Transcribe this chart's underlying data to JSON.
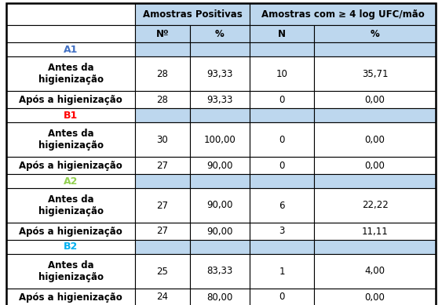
{
  "groups": [
    {
      "label": "A1",
      "label_color": "#4472C4",
      "rows": [
        {
          "label": "Antes da\nhigienização",
          "values": [
            "28",
            "93,33",
            "10",
            "35,71"
          ]
        },
        {
          "label": "Após a higienização",
          "values": [
            "28",
            "93,33",
            "0",
            "0,00"
          ]
        }
      ]
    },
    {
      "label": "B1",
      "label_color": "#FF0000",
      "rows": [
        {
          "label": "Antes da\nhigienização",
          "values": [
            "30",
            "100,00",
            "0",
            "0,00"
          ]
        },
        {
          "label": "Após a higienização",
          "values": [
            "27",
            "90,00",
            "0",
            "0,00"
          ]
        }
      ]
    },
    {
      "label": "A2",
      "label_color": "#92D050",
      "rows": [
        {
          "label": "Antes da\nhigienização",
          "values": [
            "27",
            "90,00",
            "6",
            "22,22"
          ]
        },
        {
          "label": "Após a higienização",
          "values": [
            "27",
            "90,00",
            "3",
            "11,11"
          ]
        }
      ]
    },
    {
      "label": "B2",
      "label_color": "#00B0F0",
      "rows": [
        {
          "label": "Antes da\nhigienização",
          "values": [
            "25",
            "83,33",
            "1",
            "4,00"
          ]
        },
        {
          "label": "Após a higienização",
          "values": [
            "24",
            "80,00",
            "0",
            "0,00"
          ]
        }
      ]
    }
  ],
  "header_bg": "#BDD7EE",
  "border_color": "#000000",
  "figw": 5.63,
  "figh": 3.89,
  "dpi": 100
}
